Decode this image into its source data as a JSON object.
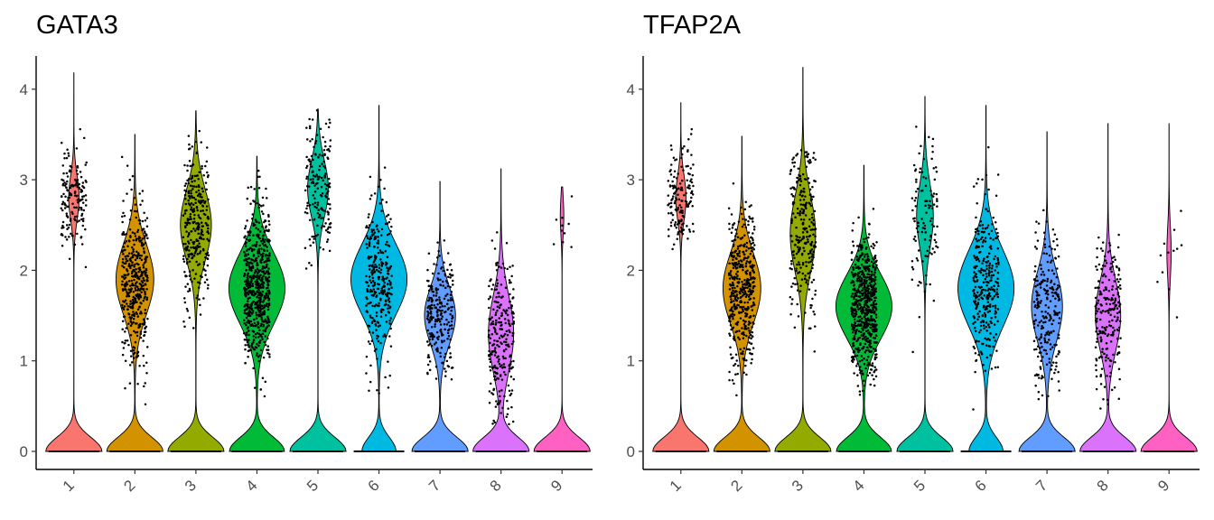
{
  "chart_data": [
    {
      "type": "violin",
      "title": "GATA3",
      "xlabel": "",
      "ylabel": "",
      "categories": [
        "1",
        "2",
        "3",
        "4",
        "5",
        "6",
        "7",
        "8",
        "9"
      ],
      "colors": [
        "#F8766D",
        "#D39200",
        "#93AA00",
        "#00BA38",
        "#00C19F",
        "#00B9E3",
        "#619CFF",
        "#DB72FB",
        "#FF61C3"
      ],
      "ylim": [
        0,
        4.3
      ],
      "yticks": [
        0,
        1,
        2,
        3,
        4
      ],
      "ytick_labels": [
        "0",
        "1",
        "2",
        "3",
        "4"
      ],
      "series": [
        {
          "category": "1",
          "max": 4.18,
          "zero_frac": 0.75,
          "center": 2.8,
          "spread": 0.35,
          "n_expr": 160,
          "expr_max": 3.8
        },
        {
          "category": "2",
          "max": 3.5,
          "zero_frac": 0.45,
          "center": 1.9,
          "spread": 0.55,
          "n_expr": 420,
          "expr_max": 3.3
        },
        {
          "category": "3",
          "max": 3.76,
          "zero_frac": 0.5,
          "center": 2.5,
          "spread": 0.55,
          "n_expr": 300,
          "expr_max": 3.6
        },
        {
          "category": "4",
          "max": 3.26,
          "zero_frac": 0.35,
          "center": 1.8,
          "spread": 0.55,
          "n_expr": 600,
          "expr_max": 3.1
        },
        {
          "category": "5",
          "max": 3.78,
          "zero_frac": 0.6,
          "center": 2.9,
          "spread": 0.45,
          "n_expr": 170,
          "expr_max": 3.78
        },
        {
          "category": "6",
          "max": 3.82,
          "zero_frac": 0.25,
          "center": 1.9,
          "spread": 0.55,
          "n_expr": 300,
          "expr_max": 3.5
        },
        {
          "category": "7",
          "max": 2.98,
          "zero_frac": 0.5,
          "center": 1.5,
          "spread": 0.45,
          "n_expr": 240,
          "expr_max": 2.95
        },
        {
          "category": "8",
          "max": 3.12,
          "zero_frac": 0.55,
          "center": 1.3,
          "spread": 0.6,
          "n_expr": 260,
          "expr_max": 2.8
        },
        {
          "category": "9",
          "max": 2.92,
          "zero_frac": 0.9,
          "center": 2.6,
          "spread": 0.3,
          "n_expr": 10,
          "expr_max": 2.9
        }
      ]
    },
    {
      "type": "violin",
      "title": "TFAP2A",
      "xlabel": "",
      "ylabel": "",
      "categories": [
        "1",
        "2",
        "3",
        "4",
        "5",
        "6",
        "7",
        "8",
        "9"
      ],
      "colors": [
        "#F8766D",
        "#D39200",
        "#93AA00",
        "#00BA38",
        "#00C19F",
        "#00B9E3",
        "#619CFF",
        "#DB72FB",
        "#FF61C3"
      ],
      "ylim": [
        0,
        4.3
      ],
      "yticks": [
        0,
        1,
        2,
        3,
        4
      ],
      "ytick_labels": [
        "0",
        "1",
        "2",
        "3",
        "4"
      ],
      "series": [
        {
          "category": "1",
          "max": 3.85,
          "zero_frac": 0.75,
          "center": 2.8,
          "spread": 0.35,
          "n_expr": 150,
          "expr_max": 3.8
        },
        {
          "category": "2",
          "max": 3.48,
          "zero_frac": 0.45,
          "center": 1.8,
          "spread": 0.55,
          "n_expr": 440,
          "expr_max": 3.1
        },
        {
          "category": "3",
          "max": 4.24,
          "zero_frac": 0.55,
          "center": 2.4,
          "spread": 0.6,
          "n_expr": 260,
          "expr_max": 3.4
        },
        {
          "category": "4",
          "max": 3.16,
          "zero_frac": 0.35,
          "center": 1.6,
          "spread": 0.5,
          "n_expr": 620,
          "expr_max": 2.9
        },
        {
          "category": "5",
          "max": 3.92,
          "zero_frac": 0.65,
          "center": 2.6,
          "spread": 0.5,
          "n_expr": 110,
          "expr_max": 3.6
        },
        {
          "category": "6",
          "max": 3.82,
          "zero_frac": 0.25,
          "center": 1.8,
          "spread": 0.6,
          "n_expr": 300,
          "expr_max": 3.4
        },
        {
          "category": "7",
          "max": 3.53,
          "zero_frac": 0.5,
          "center": 1.6,
          "spread": 0.55,
          "n_expr": 230,
          "expr_max": 3.0
        },
        {
          "category": "8",
          "max": 3.62,
          "zero_frac": 0.55,
          "center": 1.5,
          "spread": 0.55,
          "n_expr": 220,
          "expr_max": 3.0
        },
        {
          "category": "9",
          "max": 3.62,
          "zero_frac": 0.88,
          "center": 2.2,
          "spread": 0.4,
          "n_expr": 12,
          "expr_max": 3.6
        }
      ]
    }
  ]
}
